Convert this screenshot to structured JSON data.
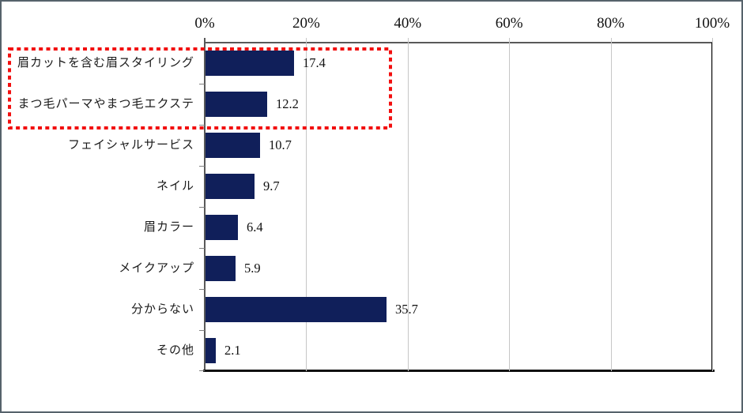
{
  "chart_data": {
    "type": "bar",
    "orientation": "horizontal",
    "title": "",
    "categories": [
      "眉カットを含む眉スタイリング",
      "まつ毛パーマやまつ毛エクステ",
      "フェイシャルサービス",
      "ネイル",
      "眉カラー",
      "メイクアップ",
      "分からない",
      "その他"
    ],
    "values": [
      17.4,
      12.2,
      10.7,
      9.7,
      6.4,
      5.9,
      35.7,
      2.1
    ],
    "value_labels": [
      "17.4",
      "12.2",
      "10.7",
      "9.7",
      "6.4",
      "5.9",
      "35.7",
      "2.1"
    ],
    "x_ticks": [
      0,
      20,
      40,
      60,
      80,
      100
    ],
    "x_tick_labels": [
      "0%",
      "20%",
      "40%",
      "60%",
      "80%",
      "100%"
    ],
    "xlim": [
      0,
      100
    ],
    "grid": true,
    "legend_position": "none",
    "bar_color": "#101f5a",
    "gridline_color": "#c6c6c6",
    "axis_color": "#595959",
    "highlight": {
      "shape": "dashed-rectangle",
      "color": "#f20f0f",
      "rows": [
        0,
        1
      ]
    }
  }
}
